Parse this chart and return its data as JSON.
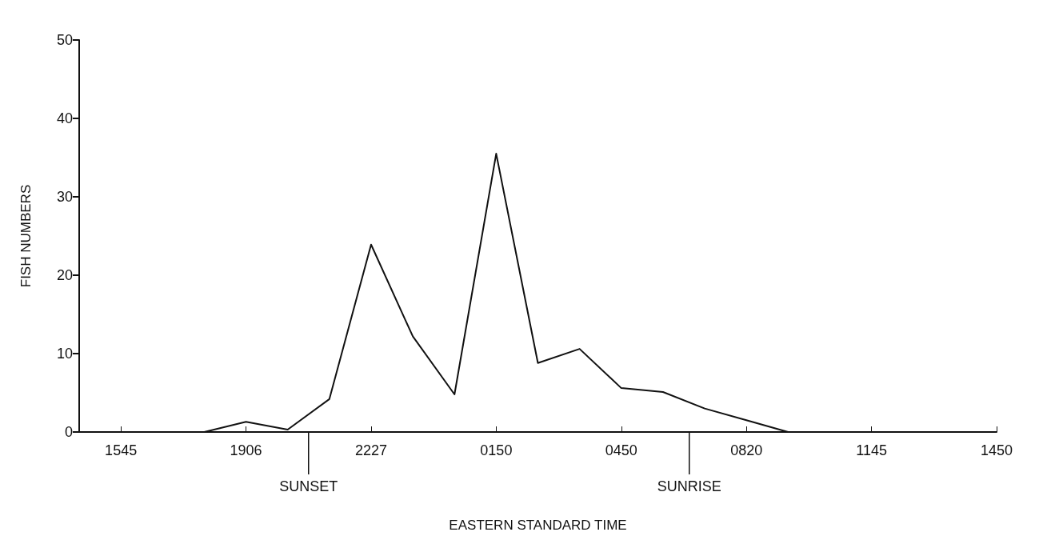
{
  "chart_data": {
    "type": "line",
    "xlabel": "EASTERN STANDARD TIME",
    "ylabel": "FISH NUMBERS",
    "categories": [
      null,
      "1545",
      null,
      null,
      "1906",
      null,
      null,
      "2227",
      null,
      null,
      "0150",
      null,
      null,
      "0450",
      null,
      null,
      "0820",
      null,
      null,
      "1145",
      null,
      null,
      "1450"
    ],
    "series": [
      {
        "color": "#111111",
        "values": [
          0,
          0,
          0,
          0,
          1.3,
          0.3,
          4.2,
          23.9,
          12.2,
          4.8,
          35.5,
          8.8,
          10.6,
          5.6,
          5.1,
          3.0,
          1.5,
          0,
          0,
          0,
          0,
          0,
          0
        ]
      }
    ],
    "ylim": [
      0,
      50
    ],
    "yticks": [
      0,
      10,
      20,
      30,
      40,
      50
    ],
    "grid": false,
    "marker": "none",
    "line_style": "solid",
    "annotations": [
      "SUNSET",
      "SUNRISE"
    ]
  }
}
